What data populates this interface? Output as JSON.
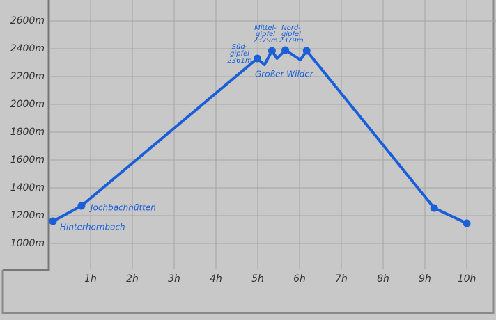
{
  "chart_data": {
    "type": "line",
    "x": [
      0.1,
      0.78,
      4.99,
      5.16,
      5.34,
      5.46,
      5.66,
      6.02,
      6.17,
      9.22,
      10.0
    ],
    "series": [
      {
        "color": "#1a5fd8",
        "values": [
          1160,
          1270,
          2330,
          2285,
          2385,
          2330,
          2390,
          2320,
          2385,
          1255,
          1145
        ],
        "markers": [
          true,
          true,
          true,
          false,
          true,
          false,
          true,
          false,
          true,
          true,
          true
        ]
      }
    ],
    "xlim": [
      0,
      10.7
    ],
    "xticks": [
      {
        "value": 1,
        "label": "1h"
      },
      {
        "value": 2,
        "label": "2h"
      },
      {
        "value": 3,
        "label": "3h"
      },
      {
        "value": 4,
        "label": "4h"
      },
      {
        "value": 5,
        "label": "5h"
      },
      {
        "value": 6,
        "label": "6h"
      },
      {
        "value": 7,
        "label": "7h"
      },
      {
        "value": 8,
        "label": "8h"
      },
      {
        "value": 9,
        "label": "9h"
      },
      {
        "value": 10,
        "label": "10h"
      }
    ],
    "ylim": [
      800,
      2700
    ],
    "yticks": [
      {
        "value": 1000,
        "label": "1000m"
      },
      {
        "value": 1200,
        "label": "1200m"
      },
      {
        "value": 1400,
        "label": "1400m"
      },
      {
        "value": 1600,
        "label": "1600m"
      },
      {
        "value": 1800,
        "label": "1800m"
      },
      {
        "value": 2000,
        "label": "2000m"
      },
      {
        "value": 2200,
        "label": "2200m"
      },
      {
        "value": 2400,
        "label": "2400m"
      },
      {
        "value": 2600,
        "label": "2600m"
      }
    ],
    "grid": true,
    "annotations": [
      {
        "lines": [
          "Hinterhornbach"
        ]
      },
      {
        "lines": [
          "Jochbachhütten"
        ]
      },
      {
        "lines": [
          "Großer Wilder"
        ]
      },
      {
        "lines": [
          "Süd-",
          "gipfel",
          "2361m"
        ]
      },
      {
        "lines": [
          "Mittel-",
          "gipfel",
          "2379m"
        ]
      },
      {
        "lines": [
          "Nord-",
          "gipfel",
          "2379m"
        ]
      }
    ]
  }
}
